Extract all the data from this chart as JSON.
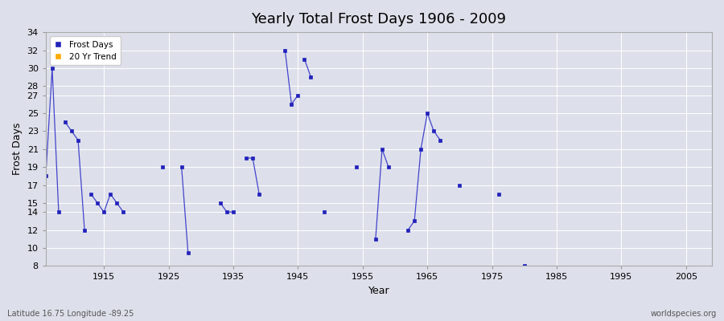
{
  "title": "Yearly Total Frost Days 1906 - 2009",
  "xlabel": "Year",
  "ylabel": "Frost Days",
  "xlim": [
    1906,
    2009
  ],
  "ylim": [
    8,
    34
  ],
  "yticks": [
    8,
    10,
    12,
    14,
    15,
    17,
    19,
    21,
    23,
    25,
    27,
    28,
    30,
    32,
    34
  ],
  "xticks": [
    1915,
    1925,
    1935,
    1945,
    1955,
    1965,
    1975,
    1985,
    1995,
    2005
  ],
  "background_color": "#dde0ea",
  "line_color": "#4444cc",
  "marker_color": "#2222bb",
  "legend_frost_color": "#2222bb",
  "legend_trend_color": "#ffaa00",
  "subtitle": "Latitude 16.75 Longitude -89.25",
  "watermark": "worldspecies.org",
  "frost_segments": [
    [
      [
        1906,
        18
      ],
      [
        1907,
        30
      ],
      [
        1908,
        14
      ]
    ],
    [
      [
        1909,
        24
      ],
      [
        1910,
        23
      ],
      [
        1911,
        22
      ],
      [
        1912,
        12
      ]
    ],
    [
      [
        1913,
        16
      ],
      [
        1914,
        15
      ],
      [
        1915,
        14
      ],
      [
        1916,
        16
      ],
      [
        1917,
        15
      ],
      [
        1918,
        14
      ]
    ],
    [
      [
        1924,
        19
      ]
    ],
    [
      [
        1927,
        19
      ],
      [
        1928,
        9.5
      ]
    ],
    [
      [
        1933,
        15
      ],
      [
        1934,
        14
      ],
      [
        1935,
        14
      ]
    ],
    [
      [
        1937,
        20
      ],
      [
        1938,
        20
      ],
      [
        1939,
        16
      ]
    ],
    [
      [
        1943,
        32
      ],
      [
        1944,
        26
      ],
      [
        1945,
        27
      ]
    ],
    [
      [
        1946,
        31
      ],
      [
        1947,
        29
      ]
    ],
    [
      [
        1949,
        14
      ]
    ],
    [
      [
        1954,
        19
      ]
    ],
    [
      [
        1957,
        11
      ],
      [
        1958,
        21
      ],
      [
        1959,
        19
      ]
    ],
    [
      [
        1962,
        12
      ],
      [
        1963,
        13
      ],
      [
        1964,
        21
      ],
      [
        1965,
        25
      ],
      [
        1966,
        23
      ],
      [
        1967,
        22
      ]
    ],
    [
      [
        1970,
        17
      ]
    ],
    [
      [
        1976,
        16
      ]
    ],
    [
      [
        1980,
        8
      ]
    ]
  ]
}
